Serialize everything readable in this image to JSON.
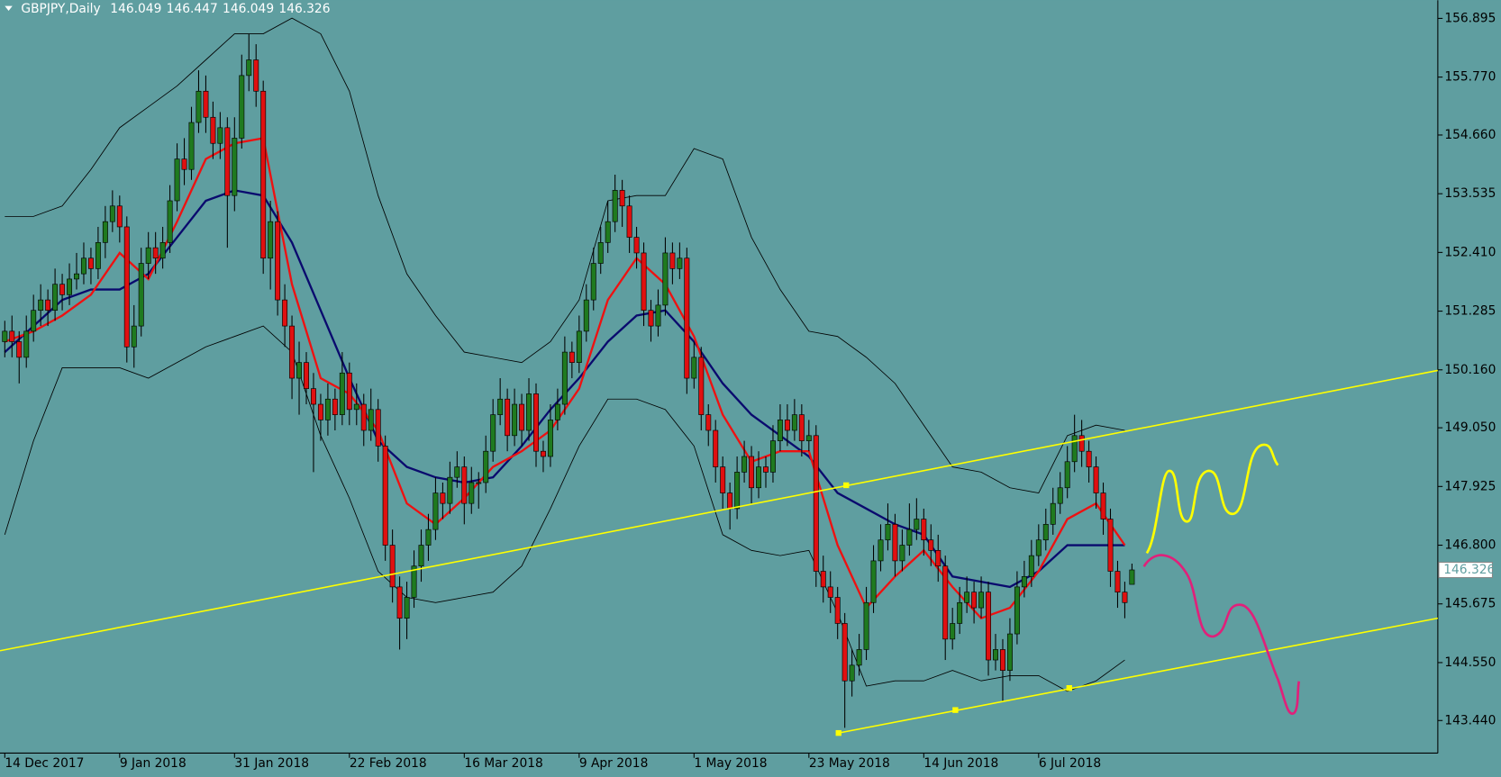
{
  "chart_data": {
    "type": "candlestick",
    "title": "GBPJPY,Daily",
    "header_ohlc": [
      146.049,
      146.447,
      146.049,
      146.326
    ],
    "last_price": 146.326,
    "ylim": [
      142.816,
      157.243
    ],
    "yticks": [
      156.895,
      {
        "value": 155.77,
        "label": "155.770"
      },
      {
        "value": 154.66,
        "label": "154.660"
      },
      153.535,
      {
        "value": 152.41,
        "label": "152.410"
      },
      151.285,
      {
        "value": 150.16,
        "label": "150.160"
      },
      {
        "value": 149.05,
        "label": "149.050"
      },
      147.925,
      {
        "value": 146.8,
        "label": "146.800"
      },
      145.675,
      {
        "value": 144.55,
        "label": "144.550"
      },
      {
        "value": 143.44,
        "label": "143.440"
      }
    ],
    "xticks": [
      {
        "value": 0,
        "label": "14 Dec 2017"
      },
      {
        "value": 16,
        "label": "9 Jan 2018"
      },
      {
        "value": 32,
        "label": "31 Jan 2018"
      },
      {
        "value": 48,
        "label": "22 Feb 2018"
      },
      {
        "value": 64,
        "label": "16 Mar 2018"
      },
      {
        "value": 80,
        "label": "9 Apr 2018"
      },
      {
        "value": 96,
        "label": "1 May 2018"
      },
      {
        "value": 112,
        "label": "23 May 2018"
      },
      {
        "value": 128,
        "label": "14 Jun 2018"
      },
      {
        "value": 144,
        "label": "6 Jul 2018"
      }
    ],
    "bull_color": "#1f7a1f",
    "bear_color": "#e01010",
    "ohlc": [
      [
        150.7,
        151.1,
        150.4,
        150.9
      ],
      [
        150.9,
        151.2,
        150.4,
        150.7
      ],
      [
        150.7,
        150.9,
        149.9,
        150.4
      ],
      [
        150.4,
        151.2,
        150.2,
        150.9
      ],
      [
        150.9,
        151.6,
        150.7,
        151.3
      ],
      [
        151.3,
        151.8,
        151.0,
        151.5
      ],
      [
        151.5,
        151.7,
        151.0,
        151.3
      ],
      [
        151.3,
        152.1,
        151.1,
        151.8
      ],
      [
        151.8,
        152.0,
        151.3,
        151.6
      ],
      [
        151.6,
        152.2,
        151.4,
        151.9
      ],
      [
        151.9,
        152.4,
        151.7,
        152.0
      ],
      [
        152.0,
        152.6,
        151.8,
        152.3
      ],
      [
        152.3,
        152.5,
        151.8,
        152.1
      ],
      [
        152.1,
        152.9,
        151.9,
        152.6
      ],
      [
        152.6,
        153.3,
        152.3,
        153.0
      ],
      [
        153.0,
        153.6,
        152.8,
        153.3
      ],
      [
        153.3,
        153.5,
        152.6,
        152.9
      ],
      [
        152.9,
        153.1,
        150.3,
        150.6
      ],
      [
        150.6,
        151.4,
        150.2,
        151.0
      ],
      [
        151.0,
        152.5,
        150.8,
        152.2
      ],
      [
        152.2,
        152.8,
        151.9,
        152.5
      ],
      [
        152.5,
        152.8,
        152.0,
        152.3
      ],
      [
        152.3,
        152.9,
        152.1,
        152.6
      ],
      [
        152.6,
        153.7,
        152.4,
        153.4
      ],
      [
        153.4,
        154.5,
        153.2,
        154.2
      ],
      [
        154.2,
        154.6,
        153.7,
        154.0
      ],
      [
        154.0,
        155.2,
        153.8,
        154.9
      ],
      [
        154.9,
        155.9,
        154.7,
        155.5
      ],
      [
        155.5,
        155.8,
        154.7,
        155.0
      ],
      [
        155.0,
        155.3,
        154.2,
        154.5
      ],
      [
        154.5,
        155.1,
        154.2,
        154.8
      ],
      [
        154.8,
        155.0,
        152.5,
        153.5
      ],
      [
        153.5,
        155.0,
        153.2,
        154.6
      ],
      [
        154.6,
        156.2,
        154.4,
        155.8
      ],
      [
        155.8,
        156.6,
        155.5,
        156.1
      ],
      [
        156.1,
        156.4,
        155.2,
        155.5
      ],
      [
        155.5,
        155.7,
        152.0,
        152.3
      ],
      [
        152.3,
        153.4,
        151.7,
        153.0
      ],
      [
        153.0,
        153.2,
        151.2,
        151.5
      ],
      [
        151.5,
        151.8,
        150.6,
        151.0
      ],
      [
        151.0,
        151.2,
        149.6,
        150.0
      ],
      [
        150.0,
        150.7,
        149.3,
        150.3
      ],
      [
        150.3,
        150.5,
        149.5,
        149.8
      ],
      [
        149.8,
        150.1,
        148.2,
        149.5
      ],
      [
        149.5,
        149.7,
        148.8,
        149.2
      ],
      [
        149.2,
        149.9,
        148.9,
        149.6
      ],
      [
        149.6,
        149.8,
        149.0,
        149.3
      ],
      [
        149.3,
        150.5,
        149.1,
        150.1
      ],
      [
        150.1,
        150.3,
        149.1,
        149.4
      ],
      [
        149.4,
        149.9,
        149.1,
        149.5
      ],
      [
        149.5,
        149.7,
        148.7,
        149.0
      ],
      [
        149.0,
        149.8,
        148.8,
        149.4
      ],
      [
        149.4,
        149.6,
        148.4,
        148.7
      ],
      [
        148.7,
        148.9,
        146.5,
        146.8
      ],
      [
        146.8,
        147.1,
        145.7,
        146.0
      ],
      [
        146.0,
        146.2,
        144.8,
        145.4
      ],
      [
        145.4,
        146.1,
        145.0,
        145.8
      ],
      [
        145.8,
        146.7,
        145.6,
        146.4
      ],
      [
        146.4,
        147.1,
        146.1,
        146.8
      ],
      [
        146.8,
        147.4,
        146.5,
        147.1
      ],
      [
        147.1,
        148.1,
        146.9,
        147.8
      ],
      [
        147.8,
        148.0,
        147.3,
        147.6
      ],
      [
        147.6,
        148.4,
        147.4,
        148.1
      ],
      [
        148.1,
        148.6,
        147.9,
        148.3
      ],
      [
        148.3,
        148.5,
        147.2,
        147.6
      ],
      [
        147.6,
        148.3,
        147.4,
        148.0
      ],
      [
        148.0,
        148.2,
        147.5,
        148.0
      ],
      [
        148.0,
        148.9,
        147.8,
        148.6
      ],
      [
        148.6,
        149.6,
        148.4,
        149.3
      ],
      [
        149.3,
        150.0,
        149.1,
        149.6
      ],
      [
        149.6,
        149.8,
        148.6,
        148.9
      ],
      [
        148.9,
        149.8,
        148.7,
        149.5
      ],
      [
        149.5,
        149.7,
        148.7,
        149.0
      ],
      [
        149.0,
        150.0,
        148.8,
        149.7
      ],
      [
        149.7,
        149.9,
        148.3,
        148.6
      ],
      [
        148.6,
        148.8,
        148.2,
        148.5
      ],
      [
        148.5,
        149.5,
        148.3,
        149.2
      ],
      [
        149.2,
        149.8,
        149.0,
        149.5
      ],
      [
        149.5,
        150.8,
        149.3,
        150.5
      ],
      [
        150.5,
        150.7,
        150.0,
        150.3
      ],
      [
        150.3,
        151.2,
        150.1,
        150.9
      ],
      [
        150.9,
        151.8,
        150.7,
        151.5
      ],
      [
        151.5,
        152.5,
        151.3,
        152.2
      ],
      [
        152.2,
        152.9,
        152.0,
        152.6
      ],
      [
        152.6,
        153.4,
        152.4,
        153.0
      ],
      [
        153.0,
        153.9,
        152.8,
        153.6
      ],
      [
        153.6,
        153.8,
        152.9,
        153.3
      ],
      [
        153.3,
        153.5,
        152.4,
        152.7
      ],
      [
        152.7,
        152.9,
        152.1,
        152.4
      ],
      [
        152.4,
        152.6,
        151.0,
        151.3
      ],
      [
        151.3,
        151.5,
        150.7,
        151.0
      ],
      [
        151.0,
        151.7,
        150.8,
        151.4
      ],
      [
        151.4,
        152.7,
        151.2,
        152.4
      ],
      [
        152.4,
        152.6,
        151.8,
        152.1
      ],
      [
        152.1,
        152.6,
        151.9,
        152.3
      ],
      [
        152.3,
        152.5,
        149.7,
        150.0
      ],
      [
        150.0,
        150.7,
        149.8,
        150.4
      ],
      [
        150.4,
        150.6,
        149.0,
        149.3
      ],
      [
        149.3,
        149.5,
        148.7,
        149.0
      ],
      [
        149.0,
        149.2,
        148.0,
        148.3
      ],
      [
        148.3,
        148.5,
        147.5,
        147.8
      ],
      [
        147.8,
        148.0,
        147.1,
        147.5
      ],
      [
        147.5,
        148.5,
        147.3,
        148.2
      ],
      [
        148.2,
        148.8,
        148.0,
        148.5
      ],
      [
        148.5,
        148.7,
        147.6,
        147.9
      ],
      [
        147.9,
        148.6,
        147.7,
        148.3
      ],
      [
        148.3,
        148.5,
        147.9,
        148.2
      ],
      [
        148.2,
        149.1,
        148.0,
        148.8
      ],
      [
        148.8,
        149.5,
        148.6,
        149.2
      ],
      [
        149.2,
        149.5,
        148.7,
        149.0
      ],
      [
        149.0,
        149.6,
        148.8,
        149.3
      ],
      [
        149.3,
        149.5,
        148.5,
        148.8
      ],
      [
        148.8,
        149.2,
        148.6,
        148.9
      ],
      [
        148.9,
        149.1,
        146.0,
        146.3
      ],
      [
        146.3,
        146.6,
        145.7,
        146.0
      ],
      [
        146.0,
        146.3,
        145.5,
        145.8
      ],
      [
        145.8,
        146.0,
        145.0,
        145.3
      ],
      [
        145.3,
        145.5,
        143.3,
        144.2
      ],
      [
        144.2,
        144.8,
        143.9,
        144.5
      ],
      [
        144.5,
        145.1,
        144.3,
        144.8
      ],
      [
        144.8,
        146.0,
        144.6,
        145.7
      ],
      [
        145.7,
        146.8,
        145.5,
        146.5
      ],
      [
        146.5,
        147.2,
        146.3,
        146.9
      ],
      [
        146.9,
        147.6,
        146.7,
        147.2
      ],
      [
        147.2,
        147.4,
        146.2,
        146.5
      ],
      [
        146.5,
        147.1,
        146.3,
        146.8
      ],
      [
        146.8,
        147.6,
        146.6,
        147.1
      ],
      [
        147.1,
        147.7,
        146.9,
        147.3
      ],
      [
        147.3,
        147.5,
        146.6,
        146.9
      ],
      [
        146.9,
        147.2,
        146.4,
        146.7
      ],
      [
        146.7,
        147.0,
        146.1,
        146.4
      ],
      [
        146.4,
        146.6,
        144.6,
        145.0
      ],
      [
        145.0,
        145.6,
        144.8,
        145.3
      ],
      [
        145.3,
        146.0,
        145.1,
        145.7
      ],
      [
        145.7,
        146.2,
        145.5,
        145.9
      ],
      [
        145.9,
        146.1,
        145.3,
        145.6
      ],
      [
        145.6,
        146.2,
        145.4,
        145.9
      ],
      [
        145.9,
        146.1,
        144.3,
        144.6
      ],
      [
        144.6,
        145.1,
        144.4,
        144.8
      ],
      [
        144.8,
        145.0,
        143.8,
        144.4
      ],
      [
        144.4,
        145.4,
        144.2,
        145.1
      ],
      [
        145.1,
        146.3,
        144.9,
        146.0
      ],
      [
        146.0,
        146.5,
        145.8,
        146.2
      ],
      [
        146.2,
        146.9,
        146.0,
        146.6
      ],
      [
        146.6,
        147.2,
        146.4,
        146.9
      ],
      [
        146.9,
        147.5,
        146.7,
        147.2
      ],
      [
        147.2,
        147.9,
        147.0,
        147.6
      ],
      [
        147.6,
        148.2,
        147.4,
        147.9
      ],
      [
        147.9,
        148.7,
        147.7,
        148.4
      ],
      [
        148.4,
        149.3,
        148.2,
        148.9
      ],
      [
        148.9,
        149.2,
        148.3,
        148.6
      ],
      [
        148.6,
        148.8,
        148.0,
        148.3
      ],
      [
        148.3,
        148.5,
        147.5,
        147.8
      ],
      [
        147.8,
        148.0,
        147.0,
        147.3
      ],
      [
        147.3,
        147.5,
        146.0,
        146.3
      ],
      [
        146.3,
        146.5,
        145.6,
        145.9
      ],
      [
        145.9,
        146.1,
        145.4,
        145.7
      ],
      [
        146.049,
        146.447,
        146.049,
        146.326
      ]
    ],
    "indicator_x": [
      0,
      4,
      8,
      12,
      16,
      20,
      24,
      28,
      32,
      36,
      40,
      44,
      48,
      52,
      56,
      60,
      64,
      68,
      72,
      76,
      80,
      84,
      88,
      92,
      96,
      100,
      104,
      108,
      112,
      116,
      120,
      124,
      128,
      132,
      136,
      140,
      144,
      148,
      152,
      156
    ],
    "indicators": [
      {
        "color": "#000000",
        "width": 0.8,
        "values": [
          153.1,
          153.1,
          153.3,
          154.0,
          154.8,
          155.2,
          155.6,
          156.1,
          156.6,
          156.6,
          156.9,
          156.6,
          155.5,
          153.5,
          152.0,
          151.2,
          150.5,
          150.4,
          150.3,
          150.7,
          151.5,
          153.4,
          153.5,
          153.5,
          154.4,
          154.2,
          152.7,
          151.7,
          150.9,
          150.8,
          150.4,
          149.9,
          149.1,
          148.3,
          148.2,
          147.9,
          147.8,
          148.9,
          149.1,
          149.0
        ]
      },
      {
        "color": "#000000",
        "width": 0.8,
        "values": [
          147.0,
          148.8,
          150.2,
          150.2,
          150.2,
          150.0,
          150.3,
          150.6,
          150.8,
          151.0,
          150.5,
          148.9,
          147.7,
          146.3,
          145.8,
          145.7,
          145.8,
          145.9,
          146.4,
          147.5,
          148.7,
          149.6,
          149.6,
          149.4,
          148.7,
          147.0,
          146.7,
          146.6,
          146.7,
          145.5,
          144.1,
          144.2,
          144.2,
          144.4,
          144.2,
          144.3,
          144.3,
          144.0,
          144.2,
          144.6
        ]
      },
      {
        "color": "#0a0a6e",
        "width": 2.2,
        "values": [
          150.5,
          151.0,
          151.5,
          151.7,
          151.7,
          152.0,
          152.7,
          153.4,
          153.6,
          153.5,
          152.6,
          151.3,
          150.0,
          148.8,
          148.3,
          148.1,
          148.0,
          148.1,
          148.7,
          149.4,
          150.0,
          150.7,
          151.2,
          151.3,
          150.7,
          149.9,
          149.3,
          148.9,
          148.5,
          147.8,
          147.5,
          147.2,
          147.0,
          146.2,
          146.1,
          146.0,
          146.3,
          146.8,
          146.8,
          146.8
        ]
      },
      {
        "color": "#ee1111",
        "width": 2.2,
        "values": [
          150.7,
          150.9,
          151.2,
          151.6,
          152.4,
          151.9,
          153.0,
          154.2,
          154.5,
          154.6,
          151.8,
          150.0,
          149.7,
          149.0,
          147.6,
          147.2,
          147.7,
          148.3,
          148.6,
          149.0,
          149.8,
          151.5,
          152.3,
          151.8,
          150.8,
          149.3,
          148.4,
          148.6,
          148.6,
          146.8,
          145.6,
          146.2,
          146.7,
          146.0,
          145.4,
          145.6,
          146.3,
          147.3,
          147.6,
          146.8
        ]
      }
    ]
  }
}
